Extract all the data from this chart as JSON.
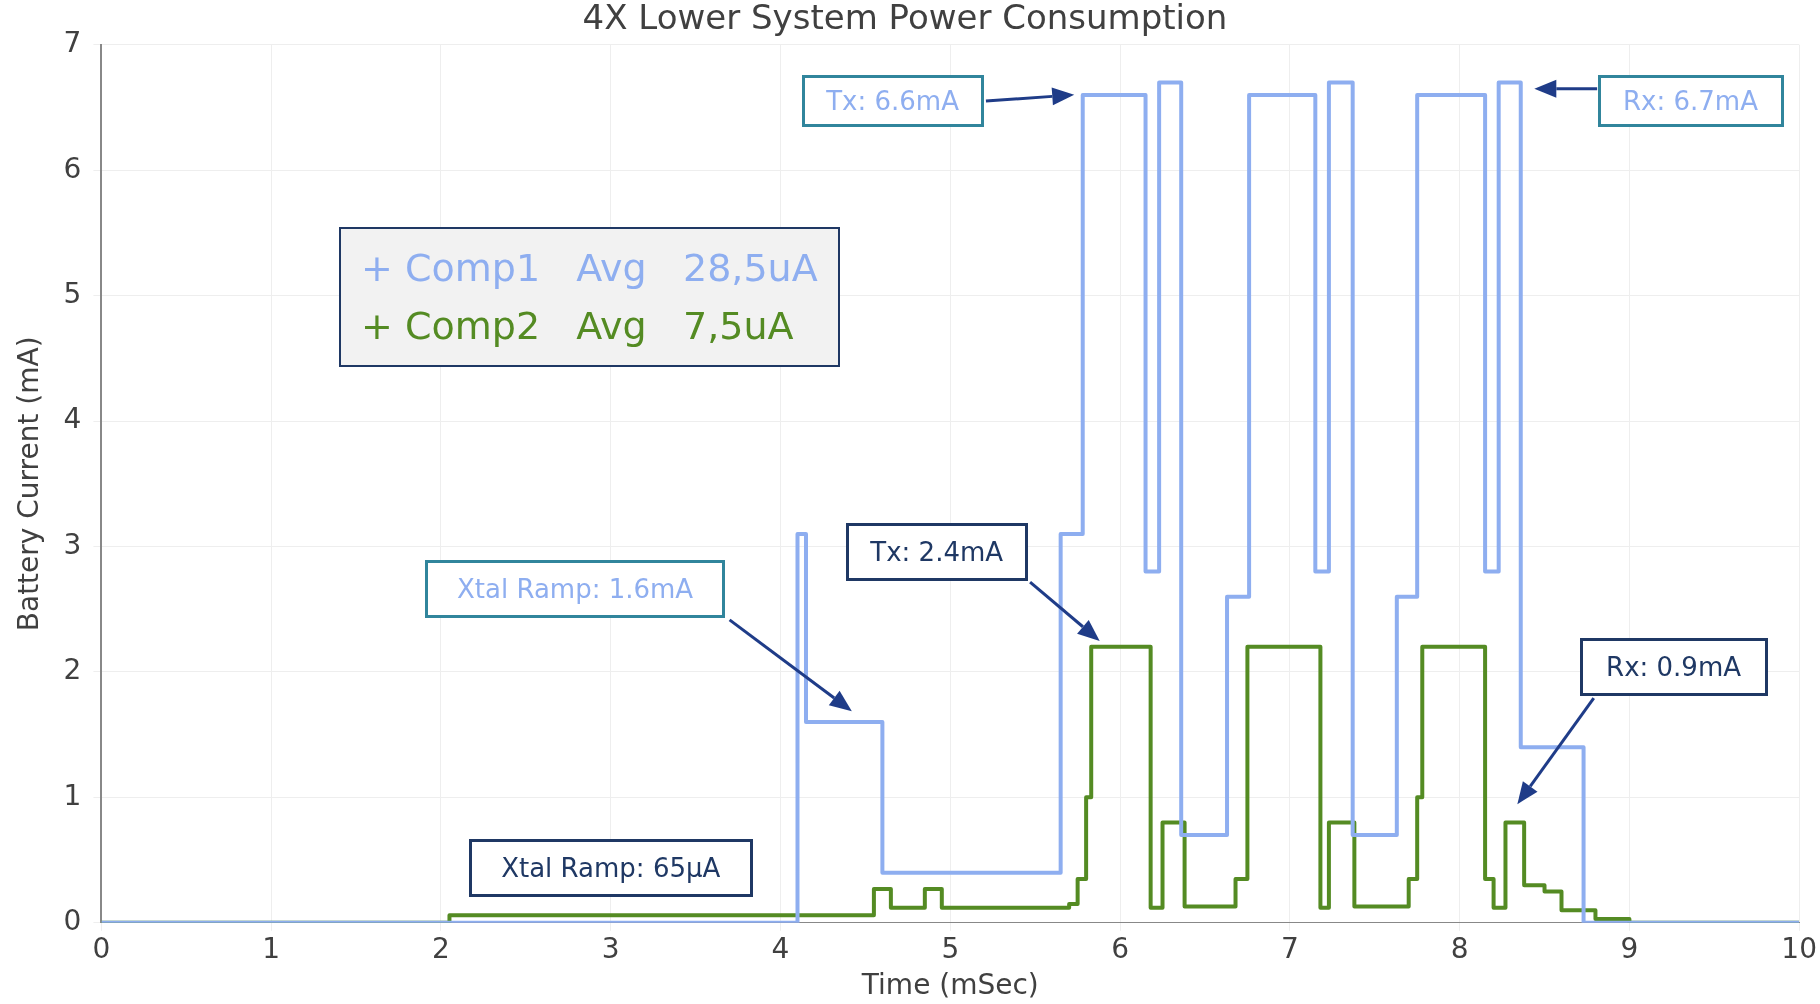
{
  "chart_data": {
    "type": "step",
    "title": "4X Lower System Power Consumption",
    "xlabel": "Time (mSec)",
    "ylabel": "Battery Current (mA)",
    "xlim": [
      0,
      10
    ],
    "xticks": [
      0,
      1,
      2,
      3,
      4,
      5,
      6,
      7,
      8,
      9,
      10
    ],
    "ylim": [
      0,
      7
    ],
    "yticks": [
      0,
      1,
      2,
      3,
      4,
      5,
      6,
      7
    ],
    "grid": true,
    "legend": "top left",
    "series": [
      {
        "name": "+ Comp1   Avg   28,5uA",
        "color": "#8eaef0",
        "x": [
          0,
          4.1,
          4.15,
          4.6,
          5.65,
          5.78,
          6.15,
          6.23,
          6.36,
          6.63,
          6.76,
          7.15,
          7.23,
          7.37,
          7.63,
          7.75,
          8.15,
          8.23,
          8.36,
          8.73,
          10
        ],
        "values": [
          0,
          3.1,
          1.6,
          0.4,
          3.1,
          6.6,
          2.8,
          6.7,
          0.7,
          2.6,
          6.6,
          2.8,
          6.7,
          0.7,
          2.6,
          6.6,
          2.8,
          6.7,
          1.4,
          0,
          0
        ]
      },
      {
        "name": "+ Comp2   Avg   7,5uA",
        "color": "#548b23",
        "x": [
          0,
          2.05,
          4.55,
          4.65,
          4.85,
          4.95,
          5.7,
          5.75,
          5.8,
          5.83,
          6.18,
          6.25,
          6.38,
          6.68,
          6.75,
          7.18,
          7.23,
          7.38,
          7.7,
          7.75,
          7.78,
          8.15,
          8.2,
          8.27,
          8.38,
          8.5,
          8.6,
          8.8,
          9.0,
          10
        ],
        "values": [
          0,
          0.06,
          0.27,
          0.12,
          0.27,
          0.12,
          0.15,
          0.35,
          1.0,
          2.2,
          0.12,
          0.8,
          0.13,
          0.35,
          2.2,
          0.12,
          0.8,
          0.13,
          0.35,
          1.0,
          2.2,
          0.35,
          0.12,
          0.8,
          0.3,
          0.25,
          0.1,
          0.03,
          0,
          0
        ]
      }
    ],
    "annotations": [
      "Tx: 6.6mA",
      "Rx: 6.7mA",
      "Xtal Ramp: 1.6mA",
      "Tx: 2.4mA",
      "Rx: 0.9mA",
      "Xtal Ramp: 65µA"
    ]
  }
}
